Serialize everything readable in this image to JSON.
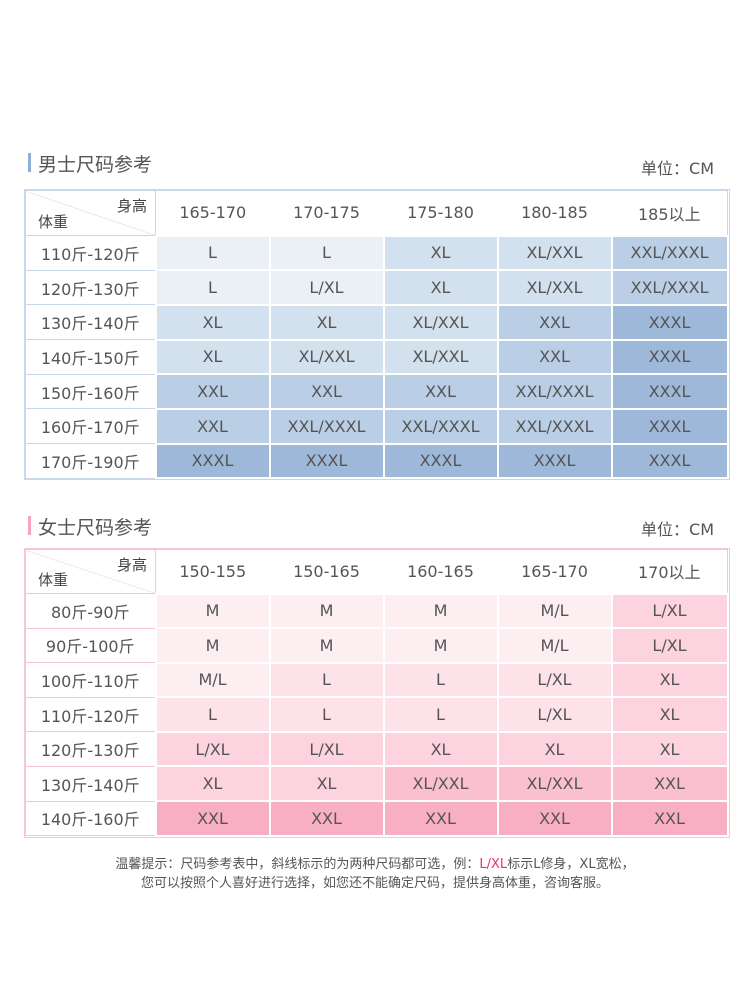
{
  "men": {
    "title": "男士尺码参考",
    "unit": "单位：CM",
    "height_label": "身高",
    "weight_label": "体重",
    "columns": [
      "165-170",
      "170-175",
      "175-180",
      "180-185",
      "185以上"
    ],
    "rows": [
      {
        "weight": "110斤-120斤",
        "sizes": [
          "L",
          "L",
          "XL",
          "XL/XXL",
          "XXL/XXXL"
        ]
      },
      {
        "weight": "120斤-130斤",
        "sizes": [
          "L",
          "L/XL",
          "XL",
          "XL/XXL",
          "XXL/XXXL"
        ]
      },
      {
        "weight": "130斤-140斤",
        "sizes": [
          "XL",
          "XL",
          "XL/XXL",
          "XXL",
          "XXXL"
        ]
      },
      {
        "weight": "140斤-150斤",
        "sizes": [
          "XL",
          "XL/XXL",
          "XL/XXL",
          "XXL",
          "XXXL"
        ]
      },
      {
        "weight": "150斤-160斤",
        "sizes": [
          "XXL",
          "XXL",
          "XXL",
          "XXL/XXXL",
          "XXXL"
        ]
      },
      {
        "weight": "160斤-170斤",
        "sizes": [
          "XXL",
          "XXL/XXXL",
          "XXL/XXXL",
          "XXL/XXXL",
          "XXXL"
        ]
      },
      {
        "weight": "170斤-190斤",
        "sizes": [
          "XXXL",
          "XXXL",
          "XXXL",
          "XXXL",
          "XXXL"
        ]
      }
    ]
  },
  "women": {
    "title": "女士尺码参考",
    "unit": "单位：CM",
    "height_label": "身高",
    "weight_label": "体重",
    "columns": [
      "150-155",
      "150-165",
      "160-165",
      "165-170",
      "170以上"
    ],
    "rows": [
      {
        "weight": "80斤-90斤",
        "sizes": [
          "M",
          "M",
          "M",
          "M/L",
          "L/XL"
        ]
      },
      {
        "weight": "90斤-100斤",
        "sizes": [
          "M",
          "M",
          "M",
          "M/L",
          "L/XL"
        ]
      },
      {
        "weight": "100斤-110斤",
        "sizes": [
          "M/L",
          "L",
          "L",
          "L/XL",
          "XL"
        ]
      },
      {
        "weight": "110斤-120斤",
        "sizes": [
          "L",
          "L",
          "L",
          "L/XL",
          "XL"
        ]
      },
      {
        "weight": "120斤-130斤",
        "sizes": [
          "L/XL",
          "L/XL",
          "XL",
          "XL",
          "XL"
        ]
      },
      {
        "weight": "130斤-140斤",
        "sizes": [
          "XL",
          "XL",
          "XL/XXL",
          "XL/XXL",
          "XXL"
        ]
      },
      {
        "weight": "140斤-160斤",
        "sizes": [
          "XXL",
          "XXL",
          "XXL",
          "XXL",
          "XXL"
        ]
      }
    ]
  },
  "note": {
    "line1_before": "温馨提示：尺码参考表中，斜线标示的为两种尺码都可选，例：",
    "line1_highlight": "L/XL",
    "line1_after": "标示L修身，XL宽松，",
    "line2": "您可以按照个人喜好进行选择，如您还不能确定尺码，提供身高体重，咨询客服。"
  }
}
